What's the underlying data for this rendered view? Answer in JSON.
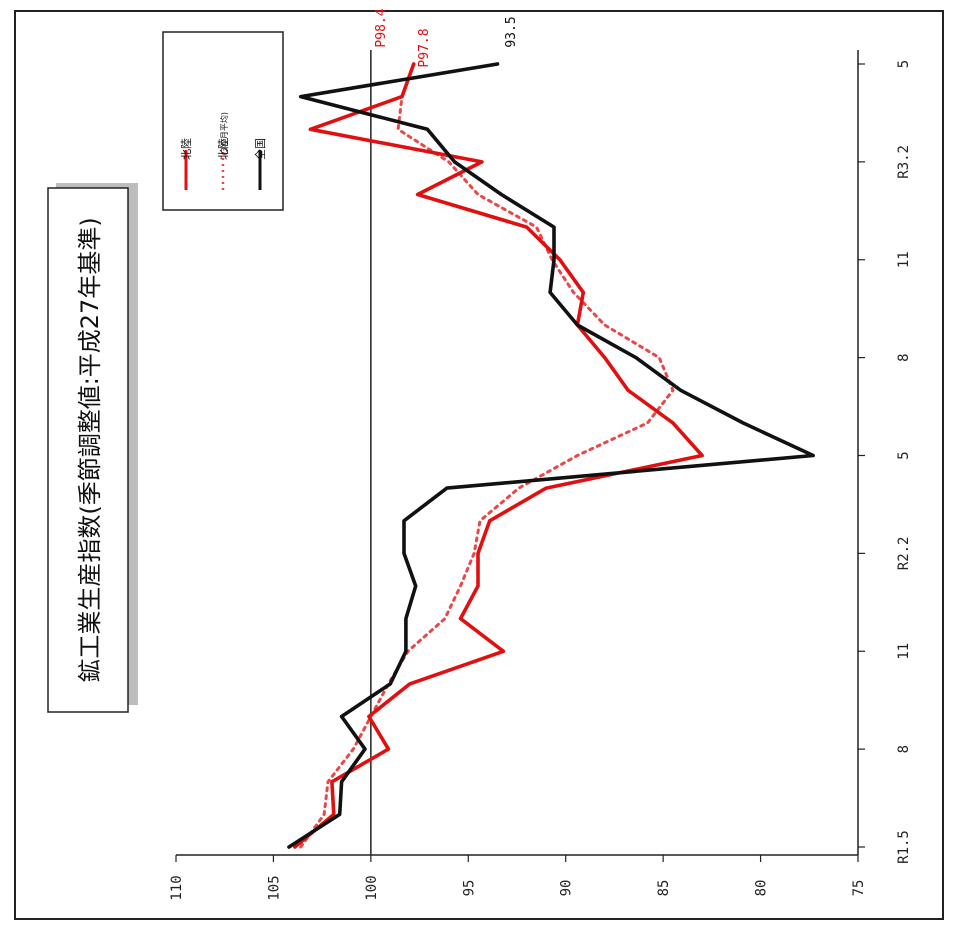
{
  "chart_data": {
    "type": "line",
    "title": "鉱工業生産指数(季節調整値:平成27年基準)",
    "orientation": "rotated-90-clockwise",
    "x": [
      "R1.5",
      "R1.6",
      "R1.7",
      "R1.8",
      "R1.9",
      "R1.10",
      "R1.11",
      "R1.12",
      "R2.1",
      "R2.2",
      "R2.3",
      "R2.4",
      "R2.5",
      "R2.6",
      "R2.7",
      "R2.8",
      "R2.9",
      "R2.10",
      "R2.11",
      "R2.12",
      "R3.1",
      "R3.2",
      "R3.3",
      "R3.4",
      "R3.5"
    ],
    "x_tick_labels": [
      {
        "label": "R1.5",
        "index": 0
      },
      {
        "label": "8",
        "index": 3
      },
      {
        "label": "11",
        "index": 6
      },
      {
        "label": "R2.2",
        "index": 9
      },
      {
        "label": "5",
        "index": 12
      },
      {
        "label": "8",
        "index": 15
      },
      {
        "label": "11",
        "index": 18
      },
      {
        "label": "R3.2",
        "index": 21
      },
      {
        "label": "5",
        "index": 24
      }
    ],
    "ylim": [
      75,
      110
    ],
    "yticks": [
      75,
      80,
      85,
      90,
      95,
      100,
      105,
      110
    ],
    "reference_line": 100,
    "series": [
      {
        "name": "北陸",
        "color": "#e01010",
        "style": "solid",
        "values": [
          103.9,
          101.9,
          102.0,
          99.1,
          100.1,
          98.0,
          93.2,
          95.4,
          94.5,
          94.5,
          93.9,
          91.0,
          83.0,
          84.5,
          86.8,
          88.0,
          89.4,
          89.1,
          90.3,
          92.0,
          97.6,
          94.3,
          103.1,
          null,
          null
        ]
      },
      {
        "name": "北陸",
        "sub": "(3か月平均)",
        "color": "#e84848",
        "style": "dotted",
        "values": [
          103.6,
          102.4,
          102.2,
          100.9,
          100.0,
          99.1,
          98.1,
          96.2,
          95.4,
          94.7,
          94.4,
          92.4,
          89.4,
          85.8,
          84.5,
          85.2,
          88.0,
          89.6,
          90.7,
          91.5,
          94.5,
          96.0,
          98.6,
          98.4,
          97.8
        ]
      },
      {
        "name": "全国",
        "color": "#111111",
        "style": "solid",
        "values": [
          104.2,
          101.6,
          101.5,
          100.3,
          101.5,
          99.0,
          98.2,
          98.2,
          97.7,
          98.3,
          98.3,
          96.1,
          77.3,
          80.9,
          84.1,
          86.4,
          89.4,
          90.8,
          90.6,
          90.6,
          93.3,
          95.7,
          97.1,
          103.6,
          93.5
        ]
      },
      {
        "name": "北陸_tail",
        "color": "#e01010",
        "style": "solid",
        "values": [
          null,
          null,
          null,
          null,
          null,
          null,
          null,
          null,
          null,
          null,
          null,
          null,
          null,
          null,
          null,
          null,
          null,
          null,
          null,
          null,
          null,
          null,
          103.1,
          98.4,
          97.8
        ]
      }
    ],
    "annotations": [
      {
        "text": "P98.4",
        "color": "#e01010",
        "series": 0
      },
      {
        "text": "P97.8",
        "color": "#e01010",
        "series": 1
      },
      {
        "text": "93.5",
        "color": "#111111",
        "series": 2
      }
    ],
    "legend": {
      "placement": "top-right",
      "items": [
        {
          "label": "北陸",
          "sub": "",
          "color": "#e01010",
          "style": "solid"
        },
        {
          "label": "北陸",
          "sub": "(3か月平均)",
          "color": "#e84848",
          "style": "dotted"
        },
        {
          "label": "全国",
          "sub": "",
          "color": "#111111",
          "style": "solid"
        }
      ]
    },
    "grid": false
  }
}
